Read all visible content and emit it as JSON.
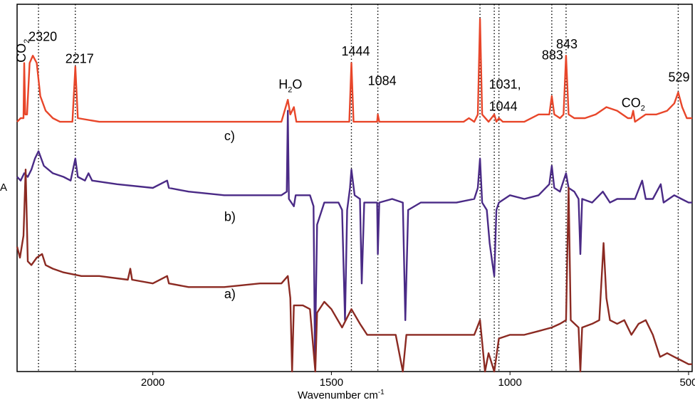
{
  "chart_data": {
    "type": "line",
    "title": "",
    "xlabel": "Wavenumber cm",
    "xlabel_superscript": "-1",
    "ylabel": "A",
    "x_reversed": true,
    "xlim": [
      2380,
      490
    ],
    "x_ticks": [
      2000,
      1500,
      1000,
      500
    ],
    "grid": false,
    "reference_lines": [
      2320,
      2217,
      1444,
      1370,
      1084,
      1044,
      1031,
      883,
      843,
      529
    ],
    "annotations": [
      {
        "text": "CO",
        "sub": "2",
        "x": 2360,
        "y": 0.88,
        "vertical": true
      },
      {
        "text": "2320",
        "x": 2320,
        "y": 0.9
      },
      {
        "text": "2217",
        "x": 2217,
        "y": 0.84
      },
      {
        "text": "1444",
        "x": 1444,
        "y": 0.86
      },
      {
        "text": "H",
        "sub": "2",
        "text_after": "O",
        "x": 1620,
        "y": 0.77
      },
      {
        "text": "1084",
        "x": 1370,
        "y": 0.78
      },
      {
        "text": "1031,",
        "x": 1031,
        "y": 0.77
      },
      {
        "text": "1044",
        "x": 1031,
        "y": 0.71
      },
      {
        "text": "883",
        "x": 883,
        "y": 0.85
      },
      {
        "text": "843",
        "x": 843,
        "y": 0.88
      },
      {
        "text": "CO",
        "sub": "2",
        "x": 660,
        "y": 0.72
      },
      {
        "text": "529",
        "x": 529,
        "y": 0.79
      }
    ],
    "series": [
      {
        "name": "c)",
        "color": "#e8462a",
        "baseline": 0.68,
        "label_at": [
          1800,
          0.63
        ],
        "points": [
          [
            2380,
            0.68
          ],
          [
            2370,
            0.69
          ],
          [
            2362,
            0.69
          ],
          [
            2360,
            0.84
          ],
          [
            2357,
            0.7
          ],
          [
            2352,
            0.7
          ],
          [
            2345,
            0.84
          ],
          [
            2336,
            0.86
          ],
          [
            2325,
            0.84
          ],
          [
            2315,
            0.75
          ],
          [
            2300,
            0.71
          ],
          [
            2280,
            0.69
          ],
          [
            2260,
            0.68
          ],
          [
            2225,
            0.68
          ],
          [
            2217,
            0.83
          ],
          [
            2210,
            0.69
          ],
          [
            2150,
            0.68
          ],
          [
            1640,
            0.68
          ],
          [
            1622,
            0.74
          ],
          [
            1615,
            0.7
          ],
          [
            1605,
            0.72
          ],
          [
            1598,
            0.68
          ],
          [
            1450,
            0.68
          ],
          [
            1444,
            0.84
          ],
          [
            1438,
            0.68
          ],
          [
            1372,
            0.68
          ],
          [
            1370,
            0.7
          ],
          [
            1366,
            0.68
          ],
          [
            1130,
            0.68
          ],
          [
            1115,
            0.69
          ],
          [
            1100,
            0.68
          ],
          [
            1090,
            0.7
          ],
          [
            1084,
            0.96
          ],
          [
            1078,
            0.7
          ],
          [
            1060,
            0.68
          ],
          [
            1044,
            0.7
          ],
          [
            1038,
            0.68
          ],
          [
            1031,
            0.69
          ],
          [
            1020,
            0.68
          ],
          [
            960,
            0.68
          ],
          [
            920,
            0.7
          ],
          [
            890,
            0.7
          ],
          [
            883,
            0.75
          ],
          [
            876,
            0.7
          ],
          [
            860,
            0.69
          ],
          [
            850,
            0.7
          ],
          [
            843,
            0.86
          ],
          [
            836,
            0.7
          ],
          [
            820,
            0.69
          ],
          [
            790,
            0.69
          ],
          [
            760,
            0.7
          ],
          [
            730,
            0.72
          ],
          [
            700,
            0.71
          ],
          [
            670,
            0.69
          ],
          [
            660,
            0.69
          ],
          [
            655,
            0.71
          ],
          [
            650,
            0.68
          ],
          [
            620,
            0.7
          ],
          [
            590,
            0.7
          ],
          [
            560,
            0.71
          ],
          [
            540,
            0.73
          ],
          [
            529,
            0.76
          ],
          [
            518,
            0.72
          ],
          [
            505,
            0.69
          ],
          [
            490,
            0.69
          ]
        ]
      },
      {
        "name": "b)",
        "color": "#4a2a86",
        "baseline": 0.48,
        "label_at": [
          1800,
          0.41
        ],
        "points": [
          [
            2380,
            0.53
          ],
          [
            2370,
            0.52
          ],
          [
            2360,
            0.54
          ],
          [
            2350,
            0.53
          ],
          [
            2340,
            0.55
          ],
          [
            2330,
            0.58
          ],
          [
            2320,
            0.6
          ],
          [
            2305,
            0.56
          ],
          [
            2280,
            0.54
          ],
          [
            2250,
            0.53
          ],
          [
            2230,
            0.52
          ],
          [
            2217,
            0.58
          ],
          [
            2210,
            0.53
          ],
          [
            2190,
            0.52
          ],
          [
            2180,
            0.54
          ],
          [
            2170,
            0.52
          ],
          [
            2100,
            0.51
          ],
          [
            2000,
            0.5
          ],
          [
            1960,
            0.52
          ],
          [
            1955,
            0.5
          ],
          [
            1900,
            0.49
          ],
          [
            1800,
            0.48
          ],
          [
            1700,
            0.48
          ],
          [
            1640,
            0.48
          ],
          [
            1625,
            0.49
          ],
          [
            1622,
            0.71
          ],
          [
            1619,
            0.47
          ],
          [
            1605,
            0.45
          ],
          [
            1600,
            0.48
          ],
          [
            1560,
            0.48
          ],
          [
            1550,
            0.45
          ],
          [
            1546,
            0.04
          ],
          [
            1540,
            0.4
          ],
          [
            1520,
            0.46
          ],
          [
            1480,
            0.46
          ],
          [
            1470,
            0.44
          ],
          [
            1462,
            0.14
          ],
          [
            1456,
            0.44
          ],
          [
            1448,
            0.5
          ],
          [
            1444,
            0.55
          ],
          [
            1435,
            0.48
          ],
          [
            1420,
            0.47
          ],
          [
            1415,
            0.24
          ],
          [
            1408,
            0.46
          ],
          [
            1380,
            0.46
          ],
          [
            1372,
            0.46
          ],
          [
            1370,
            0.32
          ],
          [
            1366,
            0.46
          ],
          [
            1330,
            0.47
          ],
          [
            1300,
            0.46
          ],
          [
            1293,
            0.14
          ],
          [
            1285,
            0.44
          ],
          [
            1250,
            0.46
          ],
          [
            1200,
            0.46
          ],
          [
            1150,
            0.46
          ],
          [
            1100,
            0.47
          ],
          [
            1090,
            0.5
          ],
          [
            1084,
            0.58
          ],
          [
            1078,
            0.46
          ],
          [
            1065,
            0.44
          ],
          [
            1057,
            0.35
          ],
          [
            1050,
            0.3
          ],
          [
            1044,
            0.26
          ],
          [
            1038,
            0.44
          ],
          [
            1031,
            0.46
          ],
          [
            1000,
            0.48
          ],
          [
            960,
            0.47
          ],
          [
            920,
            0.48
          ],
          [
            890,
            0.51
          ],
          [
            883,
            0.56
          ],
          [
            876,
            0.5
          ],
          [
            860,
            0.49
          ],
          [
            843,
            0.54
          ],
          [
            836,
            0.5
          ],
          [
            820,
            0.49
          ],
          [
            808,
            0.47
          ],
          [
            803,
            0.32
          ],
          [
            798,
            0.47
          ],
          [
            770,
            0.46
          ],
          [
            740,
            0.49
          ],
          [
            720,
            0.46
          ],
          [
            700,
            0.47
          ],
          [
            650,
            0.47
          ],
          [
            630,
            0.52
          ],
          [
            620,
            0.47
          ],
          [
            600,
            0.47
          ],
          [
            578,
            0.51
          ],
          [
            570,
            0.46
          ],
          [
            540,
            0.48
          ],
          [
            520,
            0.47
          ],
          [
            500,
            0.46
          ],
          [
            490,
            0.46
          ]
        ]
      },
      {
        "name": "a)",
        "color": "#8b2a22",
        "baseline": 0.26,
        "label_at": [
          1800,
          0.2
        ],
        "points": [
          [
            2380,
            0.34
          ],
          [
            2372,
            0.31
          ],
          [
            2362,
            0.37
          ],
          [
            2356,
            0.55
          ],
          [
            2350,
            0.3
          ],
          [
            2340,
            0.29
          ],
          [
            2325,
            0.31
          ],
          [
            2310,
            0.32
          ],
          [
            2300,
            0.29
          ],
          [
            2280,
            0.28
          ],
          [
            2250,
            0.27
          ],
          [
            2200,
            0.26
          ],
          [
            2150,
            0.26
          ],
          [
            2070,
            0.25
          ],
          [
            2063,
            0.28
          ],
          [
            2058,
            0.25
          ],
          [
            2000,
            0.24
          ],
          [
            1960,
            0.26
          ],
          [
            1955,
            0.24
          ],
          [
            1900,
            0.23
          ],
          [
            1800,
            0.23
          ],
          [
            1700,
            0.24
          ],
          [
            1640,
            0.24
          ],
          [
            1622,
            0.26
          ],
          [
            1615,
            0.2
          ],
          [
            1610,
            0.0
          ],
          [
            1605,
            0.18
          ],
          [
            1580,
            0.18
          ],
          [
            1560,
            0.17
          ],
          [
            1545,
            0.0
          ],
          [
            1540,
            0.16
          ],
          [
            1520,
            0.19
          ],
          [
            1500,
            0.17
          ],
          [
            1470,
            0.12
          ],
          [
            1444,
            0.17
          ],
          [
            1420,
            0.13
          ],
          [
            1400,
            0.1
          ],
          [
            1380,
            0.1
          ],
          [
            1320,
            0.1
          ],
          [
            1300,
            0.0
          ],
          [
            1290,
            0.1
          ],
          [
            1200,
            0.1
          ],
          [
            1100,
            0.1
          ],
          [
            1084,
            0.14
          ],
          [
            1070,
            0.0
          ],
          [
            1060,
            0.05
          ],
          [
            1044,
            0.0
          ],
          [
            1031,
            0.09
          ],
          [
            1000,
            0.1
          ],
          [
            960,
            0.1
          ],
          [
            920,
            0.11
          ],
          [
            883,
            0.12
          ],
          [
            860,
            0.13
          ],
          [
            843,
            0.14
          ],
          [
            836,
            0.5
          ],
          [
            830,
            0.14
          ],
          [
            808,
            0.12
          ],
          [
            803,
            0.0
          ],
          [
            798,
            0.12
          ],
          [
            770,
            0.13
          ],
          [
            750,
            0.14
          ],
          [
            738,
            0.35
          ],
          [
            730,
            0.2
          ],
          [
            720,
            0.14
          ],
          [
            700,
            0.13
          ],
          [
            680,
            0.14
          ],
          [
            660,
            0.1
          ],
          [
            640,
            0.13
          ],
          [
            620,
            0.14
          ],
          [
            600,
            0.1
          ],
          [
            580,
            0.04
          ],
          [
            560,
            0.05
          ],
          [
            540,
            0.04
          ],
          [
            520,
            0.03
          ],
          [
            500,
            0.02
          ],
          [
            490,
            0.02
          ]
        ]
      }
    ]
  }
}
